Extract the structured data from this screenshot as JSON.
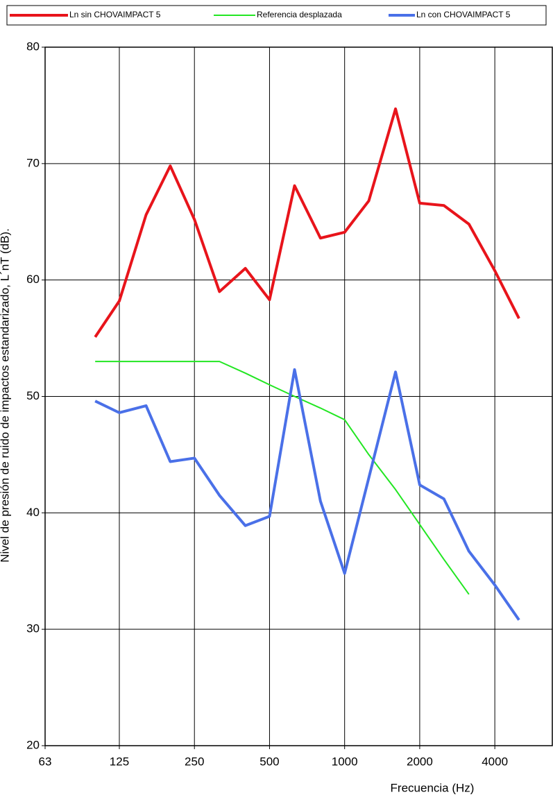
{
  "chart_data": {
    "type": "line",
    "x": [
      100,
      125,
      160,
      200,
      250,
      315,
      400,
      500,
      630,
      800,
      1000,
      1250,
      1600,
      2000,
      2500,
      3150,
      4000,
      5000
    ],
    "series": [
      {
        "name": "Ln sin CHOVAIMPACT 5",
        "color": "#e8141b",
        "width": 4,
        "values": [
          55.1,
          58.2,
          65.6,
          69.8,
          65.2,
          59.0,
          61.0,
          58.3,
          68.1,
          63.6,
          64.1,
          66.8,
          74.7,
          66.6,
          66.4,
          64.8,
          60.8,
          56.7
        ]
      },
      {
        "name": "Referencia desplazada",
        "color": "#22e622",
        "width": 2,
        "values": [
          53,
          53,
          53,
          53,
          53,
          53,
          52,
          51,
          50,
          49,
          48,
          45,
          42,
          39,
          36,
          33,
          null,
          null
        ]
      },
      {
        "name": "Ln con CHOVAIMPACT 5",
        "color": "#4a70e8",
        "width": 4,
        "values": [
          49.6,
          48.6,
          49.2,
          44.4,
          44.7,
          41.5,
          38.9,
          39.7,
          52.3,
          41.0,
          34.8,
          43.0,
          52.1,
          42.4,
          41.2,
          36.7,
          33.8,
          30.8
        ]
      }
    ],
    "x_label": "Frecuencia (Hz)",
    "y_label": "Nivel de presión de ruido de impactos estandarizado, L´nT (dB).",
    "xscale": "log",
    "xlim": [
      63,
      6800
    ],
    "xticks": [
      63,
      125,
      250,
      500,
      1000,
      2000,
      4000
    ],
    "ylim": [
      20,
      80
    ],
    "yticks": [
      20,
      30,
      40,
      50,
      60,
      70,
      80
    ],
    "grid": true,
    "legend": "top"
  }
}
